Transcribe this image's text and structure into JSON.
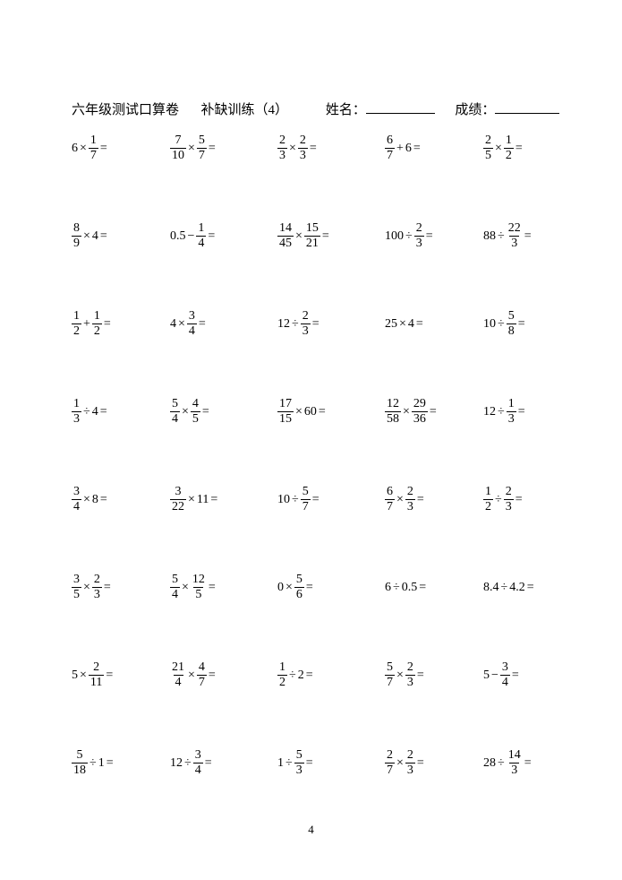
{
  "header": {
    "title": "六年级测试口算卷",
    "subtitle": "补缺训练（4）",
    "name_label": "姓名：",
    "score_label": "成绩："
  },
  "page_number": "4",
  "rows": [
    [
      {
        "parts": [
          {
            "t": "n",
            "v": "6"
          },
          {
            "t": "op",
            "v": "×"
          },
          {
            "t": "f",
            "n": "1",
            "d": "7"
          },
          {
            "t": "op",
            "v": "="
          }
        ]
      },
      {
        "parts": [
          {
            "t": "f",
            "n": "7",
            "d": "10"
          },
          {
            "t": "op",
            "v": "×"
          },
          {
            "t": "f",
            "n": "5",
            "d": "7"
          },
          {
            "t": "op",
            "v": "="
          }
        ]
      },
      {
        "parts": [
          {
            "t": "f",
            "n": "2",
            "d": "3"
          },
          {
            "t": "op",
            "v": "×"
          },
          {
            "t": "f",
            "n": "2",
            "d": "3"
          },
          {
            "t": "op",
            "v": "="
          }
        ]
      },
      {
        "parts": [
          {
            "t": "f",
            "n": "6",
            "d": "7"
          },
          {
            "t": "op",
            "v": "+"
          },
          {
            "t": "n",
            "v": "6"
          },
          {
            "t": "op",
            "v": "="
          }
        ]
      },
      {
        "parts": [
          {
            "t": "f",
            "n": "2",
            "d": "5"
          },
          {
            "t": "op",
            "v": "×"
          },
          {
            "t": "f",
            "n": "1",
            "d": "2"
          },
          {
            "t": "op",
            "v": "="
          }
        ]
      }
    ],
    [
      {
        "parts": [
          {
            "t": "f",
            "n": "8",
            "d": "9"
          },
          {
            "t": "op",
            "v": "×"
          },
          {
            "t": "n",
            "v": "4"
          },
          {
            "t": "op",
            "v": "="
          }
        ]
      },
      {
        "parts": [
          {
            "t": "n",
            "v": "0.5"
          },
          {
            "t": "op",
            "v": "−"
          },
          {
            "t": "f",
            "n": "1",
            "d": "4"
          },
          {
            "t": "op",
            "v": "="
          }
        ]
      },
      {
        "parts": [
          {
            "t": "f",
            "n": "14",
            "d": "45"
          },
          {
            "t": "op",
            "v": "×"
          },
          {
            "t": "f",
            "n": "15",
            "d": "21"
          },
          {
            "t": "op",
            "v": "="
          }
        ]
      },
      {
        "parts": [
          {
            "t": "n",
            "v": "100"
          },
          {
            "t": "op",
            "v": "÷"
          },
          {
            "t": "f",
            "n": "2",
            "d": "3"
          },
          {
            "t": "op",
            "v": "="
          }
        ]
      },
      {
        "parts": [
          {
            "t": "n",
            "v": "88"
          },
          {
            "t": "op",
            "v": "÷"
          },
          {
            "t": "f",
            "n": "22",
            "d": "3"
          },
          {
            "t": "op",
            "v": "="
          }
        ]
      }
    ],
    [
      {
        "parts": [
          {
            "t": "f",
            "n": "1",
            "d": "2"
          },
          {
            "t": "op",
            "v": "+"
          },
          {
            "t": "f",
            "n": "1",
            "d": "2"
          },
          {
            "t": "op",
            "v": "="
          }
        ]
      },
      {
        "parts": [
          {
            "t": "n",
            "v": "4"
          },
          {
            "t": "op",
            "v": "×"
          },
          {
            "t": "f",
            "n": "3",
            "d": "4"
          },
          {
            "t": "op",
            "v": "="
          }
        ]
      },
      {
        "parts": [
          {
            "t": "n",
            "v": "12"
          },
          {
            "t": "op",
            "v": "÷"
          },
          {
            "t": "f",
            "n": "2",
            "d": "3"
          },
          {
            "t": "op",
            "v": "="
          }
        ]
      },
      {
        "parts": [
          {
            "t": "n",
            "v": "25"
          },
          {
            "t": "op",
            "v": "×"
          },
          {
            "t": "n",
            "v": "4"
          },
          {
            "t": "op",
            "v": "="
          }
        ]
      },
      {
        "parts": [
          {
            "t": "n",
            "v": "10"
          },
          {
            "t": "op",
            "v": "÷"
          },
          {
            "t": "f",
            "n": "5",
            "d": "8"
          },
          {
            "t": "op",
            "v": "="
          }
        ]
      }
    ],
    [
      {
        "parts": [
          {
            "t": "f",
            "n": "1",
            "d": "3"
          },
          {
            "t": "op",
            "v": "÷"
          },
          {
            "t": "n",
            "v": "4"
          },
          {
            "t": "op",
            "v": "="
          }
        ]
      },
      {
        "parts": [
          {
            "t": "f",
            "n": "5",
            "d": "4"
          },
          {
            "t": "op",
            "v": "×"
          },
          {
            "t": "f",
            "n": "4",
            "d": "5"
          },
          {
            "t": "op",
            "v": "="
          }
        ]
      },
      {
        "parts": [
          {
            "t": "f",
            "n": "17",
            "d": "15"
          },
          {
            "t": "op",
            "v": "×"
          },
          {
            "t": "n",
            "v": "60"
          },
          {
            "t": "op",
            "v": "="
          }
        ]
      },
      {
        "parts": [
          {
            "t": "f",
            "n": "12",
            "d": "58"
          },
          {
            "t": "op",
            "v": "×"
          },
          {
            "t": "f",
            "n": "29",
            "d": "36"
          },
          {
            "t": "op",
            "v": "="
          }
        ]
      },
      {
        "parts": [
          {
            "t": "n",
            "v": "12"
          },
          {
            "t": "op",
            "v": "÷"
          },
          {
            "t": "f",
            "n": "1",
            "d": "3"
          },
          {
            "t": "op",
            "v": "="
          }
        ]
      }
    ],
    [
      {
        "parts": [
          {
            "t": "f",
            "n": "3",
            "d": "4"
          },
          {
            "t": "op",
            "v": "×"
          },
          {
            "t": "n",
            "v": "8"
          },
          {
            "t": "op",
            "v": "="
          }
        ]
      },
      {
        "parts": [
          {
            "t": "f",
            "n": "3",
            "d": "22"
          },
          {
            "t": "op",
            "v": "×"
          },
          {
            "t": "n",
            "v": "11"
          },
          {
            "t": "op",
            "v": "="
          }
        ]
      },
      {
        "parts": [
          {
            "t": "n",
            "v": "10"
          },
          {
            "t": "op",
            "v": "÷"
          },
          {
            "t": "f",
            "n": "5",
            "d": "7"
          },
          {
            "t": "op",
            "v": "="
          }
        ]
      },
      {
        "parts": [
          {
            "t": "f",
            "n": "6",
            "d": "7"
          },
          {
            "t": "op",
            "v": "×"
          },
          {
            "t": "f",
            "n": "2",
            "d": "3"
          },
          {
            "t": "op",
            "v": "="
          }
        ]
      },
      {
        "parts": [
          {
            "t": "f",
            "n": "1",
            "d": "2"
          },
          {
            "t": "op",
            "v": "÷"
          },
          {
            "t": "f",
            "n": "2",
            "d": "3"
          },
          {
            "t": "op",
            "v": "="
          }
        ]
      }
    ],
    [
      {
        "parts": [
          {
            "t": "f",
            "n": "3",
            "d": "5"
          },
          {
            "t": "op",
            "v": "×"
          },
          {
            "t": "f",
            "n": "2",
            "d": "3"
          },
          {
            "t": "op",
            "v": "="
          }
        ]
      },
      {
        "parts": [
          {
            "t": "f",
            "n": "5",
            "d": "4"
          },
          {
            "t": "op",
            "v": "×"
          },
          {
            "t": "f",
            "n": "12",
            "d": "5"
          },
          {
            "t": "op",
            "v": "="
          }
        ]
      },
      {
        "parts": [
          {
            "t": "n",
            "v": "0"
          },
          {
            "t": "op",
            "v": "×"
          },
          {
            "t": "f",
            "n": "5",
            "d": "6"
          },
          {
            "t": "op",
            "v": "="
          }
        ]
      },
      {
        "parts": [
          {
            "t": "n",
            "v": "6"
          },
          {
            "t": "op",
            "v": "÷"
          },
          {
            "t": "n",
            "v": "0.5"
          },
          {
            "t": "op",
            "v": "="
          }
        ]
      },
      {
        "parts": [
          {
            "t": "n",
            "v": "8.4"
          },
          {
            "t": "op",
            "v": "÷"
          },
          {
            "t": "n",
            "v": "4.2"
          },
          {
            "t": "op",
            "v": "="
          }
        ]
      }
    ],
    [
      {
        "parts": [
          {
            "t": "n",
            "v": "5"
          },
          {
            "t": "op",
            "v": "×"
          },
          {
            "t": "f",
            "n": "2",
            "d": "11"
          },
          {
            "t": "op",
            "v": "="
          }
        ]
      },
      {
        "parts": [
          {
            "t": "f",
            "n": "21",
            "d": "4"
          },
          {
            "t": "op",
            "v": "×"
          },
          {
            "t": "f",
            "n": "4",
            "d": "7"
          },
          {
            "t": "op",
            "v": "="
          }
        ]
      },
      {
        "parts": [
          {
            "t": "f",
            "n": "1",
            "d": "2"
          },
          {
            "t": "op",
            "v": "÷"
          },
          {
            "t": "n",
            "v": "2"
          },
          {
            "t": "op",
            "v": "="
          }
        ]
      },
      {
        "parts": [
          {
            "t": "f",
            "n": "5",
            "d": "7"
          },
          {
            "t": "op",
            "v": "×"
          },
          {
            "t": "f",
            "n": "2",
            "d": "3"
          },
          {
            "t": "op",
            "v": "="
          }
        ]
      },
      {
        "parts": [
          {
            "t": "n",
            "v": "5"
          },
          {
            "t": "op",
            "v": "−"
          },
          {
            "t": "f",
            "n": "3",
            "d": "4"
          },
          {
            "t": "op",
            "v": "="
          }
        ]
      }
    ],
    [
      {
        "parts": [
          {
            "t": "f",
            "n": "5",
            "d": "18"
          },
          {
            "t": "op",
            "v": "÷"
          },
          {
            "t": "n",
            "v": "1"
          },
          {
            "t": "op",
            "v": "="
          }
        ]
      },
      {
        "parts": [
          {
            "t": "n",
            "v": "12"
          },
          {
            "t": "op",
            "v": "÷"
          },
          {
            "t": "f",
            "n": "3",
            "d": "4"
          },
          {
            "t": "op",
            "v": "="
          }
        ]
      },
      {
        "parts": [
          {
            "t": "n",
            "v": "1"
          },
          {
            "t": "op",
            "v": "÷"
          },
          {
            "t": "f",
            "n": "5",
            "d": "3"
          },
          {
            "t": "op",
            "v": "="
          }
        ]
      },
      {
        "parts": [
          {
            "t": "f",
            "n": "2",
            "d": "7"
          },
          {
            "t": "op",
            "v": "×"
          },
          {
            "t": "f",
            "n": "2",
            "d": "3"
          },
          {
            "t": "op",
            "v": "="
          }
        ]
      },
      {
        "parts": [
          {
            "t": "n",
            "v": "28"
          },
          {
            "t": "op",
            "v": "÷"
          },
          {
            "t": "f",
            "n": "14",
            "d": "3"
          },
          {
            "t": "op",
            "v": "="
          }
        ]
      }
    ]
  ]
}
